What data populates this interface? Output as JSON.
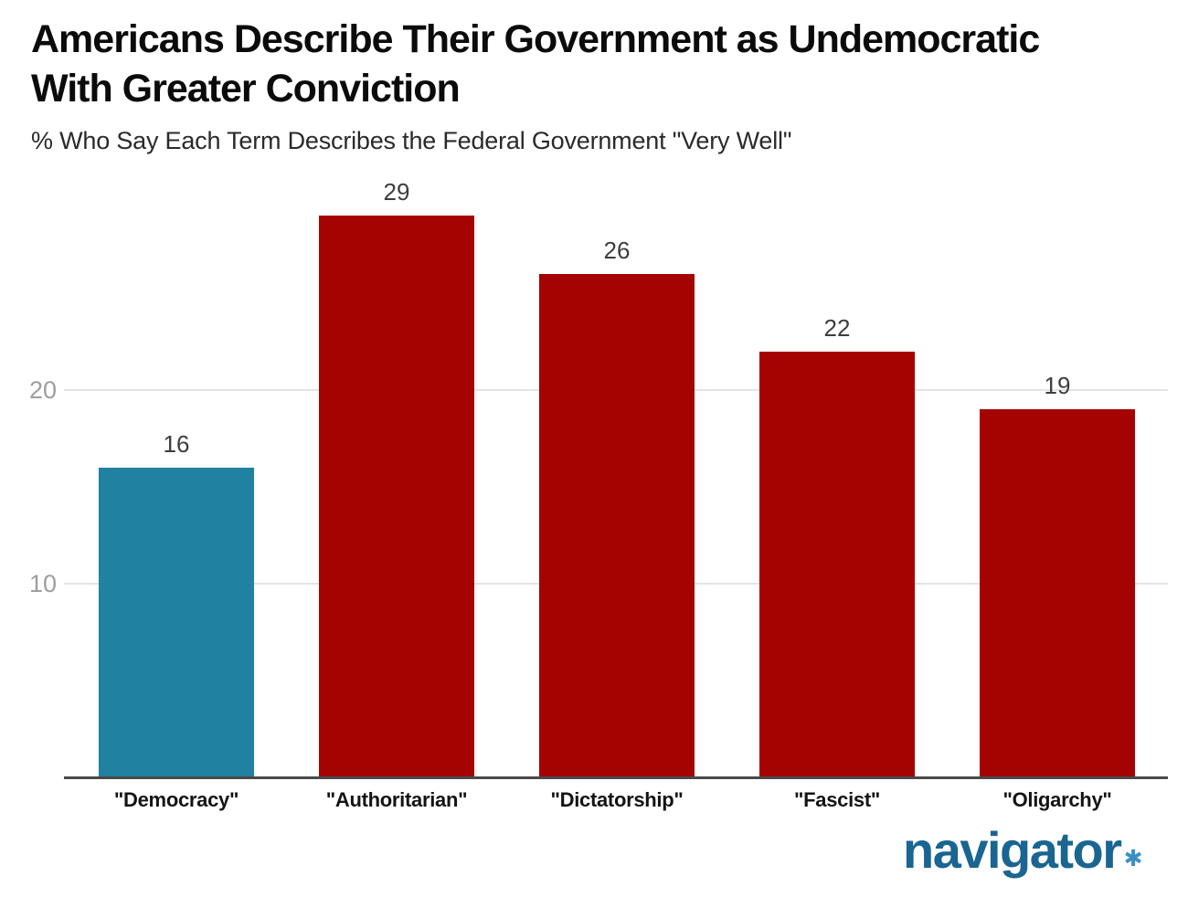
{
  "header": {
    "title_line1": "Americans Describe Their Government as Undemocratic",
    "title_line2": "With Greater Conviction",
    "subtitle": "% Who Say Each Term Describes the Federal Government \"Very Well\""
  },
  "chart_data": {
    "type": "bar",
    "title": "Americans Describe Their Government as Undemocratic With Greater Conviction",
    "subtitle": "% Who Say Each Term Describes the Federal Government \"Very Well\"",
    "categories": [
      "\"Democracy\"",
      "\"Authoritarian\"",
      "\"Dictatorship\"",
      "\"Fascist\"",
      "\"Oligarchy\""
    ],
    "values": [
      16,
      29,
      26,
      22,
      19
    ],
    "bar_colors": [
      "#2081A0",
      "#A50202",
      "#A50202",
      "#A50202",
      "#A50202"
    ],
    "highlight_color": "#2081A0",
    "default_color": "#A50202",
    "yticks": [
      10,
      20
    ],
    "ylim": [
      0,
      30
    ],
    "xlabel": "",
    "ylabel": "",
    "grid": "horizontal",
    "legend": "none",
    "value_labels_shown": true
  },
  "branding": {
    "logo_text": "navigator",
    "logo_mark": "✱",
    "logo_text_color": "#1A6591",
    "logo_mark_color": "#3A90C6"
  }
}
